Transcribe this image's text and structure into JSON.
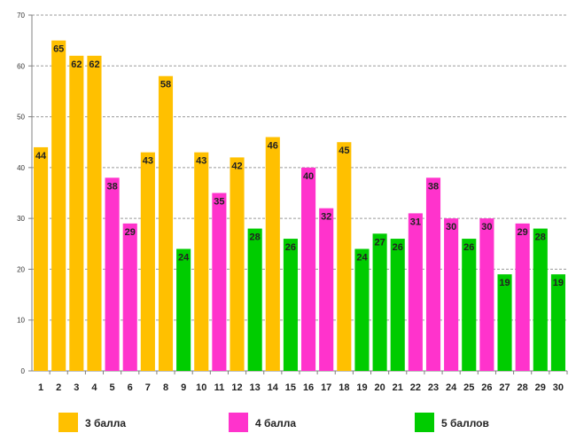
{
  "chart_data": {
    "type": "bar",
    "categories": [
      "1",
      "2",
      "3",
      "4",
      "5",
      "6",
      "7",
      "8",
      "9",
      "10",
      "11",
      "12",
      "13",
      "14",
      "15",
      "16",
      "17",
      "18",
      "19",
      "20",
      "21",
      "22",
      "23",
      "24",
      "25",
      "26",
      "27",
      "28",
      "29",
      "30"
    ],
    "values": [
      44,
      65,
      62,
      62,
      38,
      29,
      43,
      58,
      24,
      43,
      35,
      42,
      28,
      46,
      26,
      40,
      32,
      45,
      24,
      27,
      26,
      31,
      38,
      30,
      26,
      30,
      19,
      29,
      28,
      19
    ],
    "groups": [
      "g3",
      "g3",
      "g3",
      "g3",
      "g4",
      "g4",
      "g3",
      "g3",
      "g5",
      "g3",
      "g4",
      "g3",
      "g5",
      "g3",
      "g5",
      "g4",
      "g4",
      "g3",
      "g5",
      "g5",
      "g5",
      "g4",
      "g4",
      "g4",
      "g5",
      "g4",
      "g5",
      "g4",
      "g5",
      "g5"
    ],
    "legend": [
      {
        "key": "g3",
        "name": "3 балла",
        "color": "#FFC000"
      },
      {
        "key": "g4",
        "name": "4 балла",
        "color": "#FF33CC"
      },
      {
        "key": "g5",
        "name": "5 баллов",
        "color": "#00CC00"
      }
    ],
    "ylim": [
      0,
      70
    ],
    "yticks": [
      "0",
      "10",
      "20",
      "30",
      "40",
      "50",
      "60",
      "70"
    ],
    "grid": true,
    "legend_position": "bottom"
  }
}
